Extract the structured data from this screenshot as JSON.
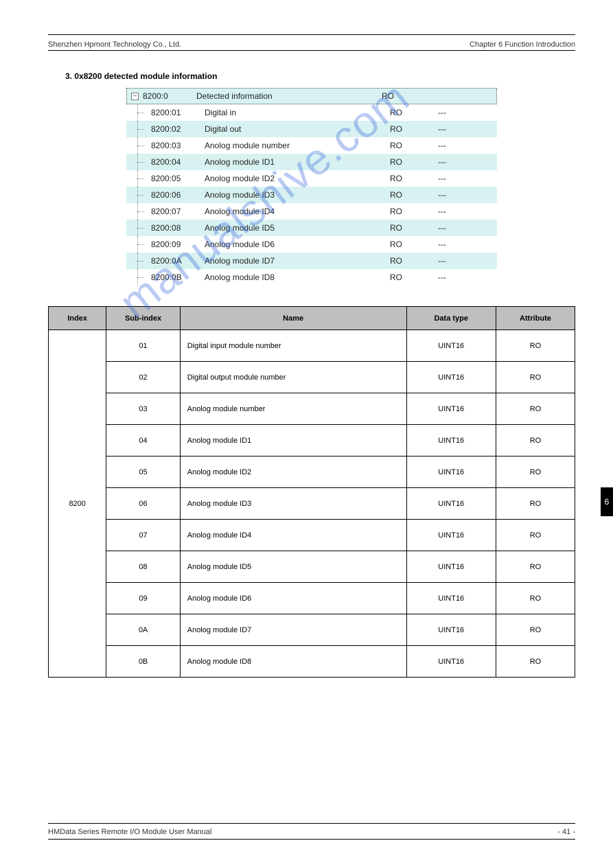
{
  "header": {
    "left": "Shenzhen Hpmont Technology Co., Ltd.",
    "right": "Chapter 6 Function Introduction"
  },
  "section_label": "3. 0x8200 detected module information",
  "tree": {
    "header": {
      "idx": "8200:0",
      "name": "Detected information",
      "flag": "RO",
      "val": ""
    },
    "rows": [
      {
        "idx": "8200:01",
        "name": "Digital in",
        "flag": "RO",
        "val": "---",
        "alt": false
      },
      {
        "idx": "8200:02",
        "name": "Digital out",
        "flag": "RO",
        "val": "---",
        "alt": true
      },
      {
        "idx": "8200:03",
        "name": "Anolog module number",
        "flag": "RO",
        "val": "---",
        "alt": false
      },
      {
        "idx": "8200:04",
        "name": "Anolog module ID1",
        "flag": "RO",
        "val": "---",
        "alt": true
      },
      {
        "idx": "8200:05",
        "name": "Anolog module ID2",
        "flag": "RO",
        "val": "---",
        "alt": false
      },
      {
        "idx": "8200:06",
        "name": "Anolog module ID3",
        "flag": "RO",
        "val": "---",
        "alt": true
      },
      {
        "idx": "8200:07",
        "name": "Anolog module ID4",
        "flag": "RO",
        "val": "---",
        "alt": false
      },
      {
        "idx": "8200:08",
        "name": "Anolog module ID5",
        "flag": "RO",
        "val": "---",
        "alt": true
      },
      {
        "idx": "8200:09",
        "name": "Anolog module ID6",
        "flag": "RO",
        "val": "---",
        "alt": false
      },
      {
        "idx": "8200:0A",
        "name": "Anolog module ID7",
        "flag": "RO",
        "val": "---",
        "alt": true
      },
      {
        "idx": "8200:0B",
        "name": "Anolog module ID8",
        "flag": "RO",
        "val": "---",
        "alt": false
      }
    ]
  },
  "ptable": {
    "columns": [
      "Index",
      "Sub-index",
      "Name",
      "Data type",
      "Attribute"
    ],
    "col_widths": [
      "11%",
      "14%",
      "43%",
      "17%",
      "15%"
    ],
    "rows": [
      {
        "index": "8200",
        "sub": "01",
        "name": "Digital input module number",
        "dtype": "UINT16",
        "attr": "RO"
      },
      {
        "index": "",
        "sub": "02",
        "name": "Digital output module number",
        "dtype": "UINT16",
        "attr": "RO"
      },
      {
        "index": "",
        "sub": "03",
        "name": "Anolog module number",
        "dtype": "UINT16",
        "attr": "RO"
      },
      {
        "index": "",
        "sub": "04",
        "name": "Anolog module ID1",
        "dtype": "UINT16",
        "attr": "RO"
      },
      {
        "index": "",
        "sub": "05",
        "name": "Anolog module ID2",
        "dtype": "UINT16",
        "attr": "RO"
      },
      {
        "index": "",
        "sub": "06",
        "name": "Anolog module ID3",
        "dtype": "UINT16",
        "attr": "RO"
      },
      {
        "index": "",
        "sub": "07",
        "name": "Anolog module ID4",
        "dtype": "UINT16",
        "attr": "RO"
      },
      {
        "index": "",
        "sub": "08",
        "name": "Anolog module ID5",
        "dtype": "UINT16",
        "attr": "RO"
      },
      {
        "index": "",
        "sub": "09",
        "name": "Anolog module ID6",
        "dtype": "UINT16",
        "attr": "RO"
      },
      {
        "index": "",
        "sub": "0A",
        "name": "Anolog module ID7",
        "dtype": "UINT16",
        "attr": "RO"
      },
      {
        "index": "",
        "sub": "0B",
        "name": "Anolog module ID8",
        "dtype": "UINT16",
        "attr": "RO"
      }
    ],
    "rowspan_first_col": 11
  },
  "watermark_text": "manualshive.com",
  "sidetab_text": "6",
  "footer": {
    "left": "HMData Series Remote I/O Module User Manual",
    "right": "- 41 -"
  }
}
